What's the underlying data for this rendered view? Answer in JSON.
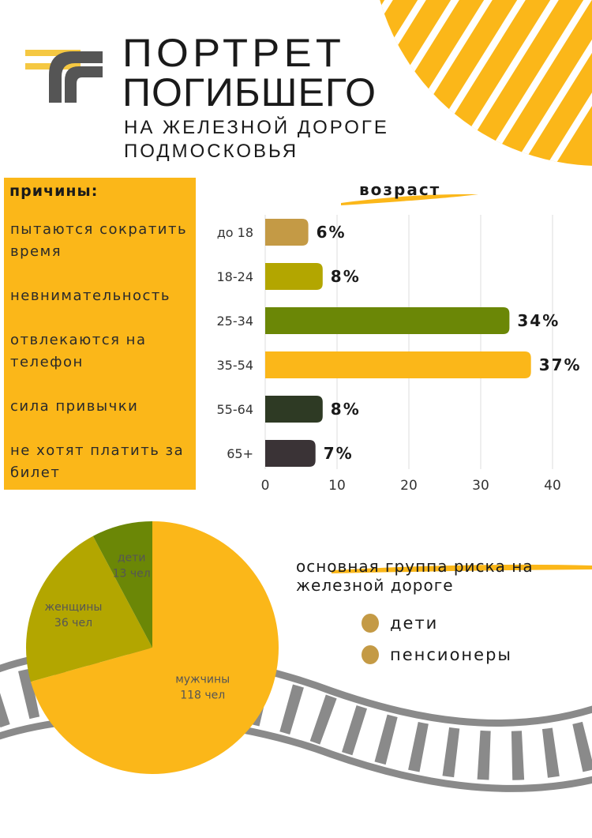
{
  "header": {
    "title_line1": "ПОРТРЕТ",
    "title_line2": "ПОГИБШЕГО",
    "subtitle_line1": "НА ЖЕЛЕЗНОЙ ДОРОГЕ",
    "subtitle_line2": "ПОДМОСКОВЬЯ"
  },
  "reasons": {
    "heading": "причины:",
    "items": [
      "пытаются сократить время",
      "невнимательность",
      "отвлекаются на телефон",
      "сила привычки",
      "не хотят платить за билет"
    ]
  },
  "risk": {
    "title": "основная группа риска на железной дороге",
    "legend": [
      "дети",
      "пенсионеры"
    ],
    "legend_color": "#c49a45"
  },
  "chart_data": [
    {
      "type": "bar",
      "orientation": "horizontal",
      "title": "возраст",
      "categories": [
        "до 18",
        "18-24",
        "25-34",
        "35-54",
        "55-64",
        "65+"
      ],
      "values": [
        6,
        8,
        34,
        37,
        8,
        7
      ],
      "data_labels": [
        "6%",
        "8%",
        "34%",
        "37%",
        "8%",
        "7%"
      ],
      "colors": [
        "#c49a45",
        "#b3a600",
        "#6b8706",
        "#fbb719",
        "#2e3a24",
        "#3a3336"
      ],
      "xlim": [
        0,
        40
      ],
      "xticks": [
        0,
        10,
        20,
        30,
        40
      ],
      "grid": true
    },
    {
      "type": "pie",
      "slices": [
        {
          "name": "мужчины",
          "value": 118,
          "label": "118 чел",
          "color": "#fbb719"
        },
        {
          "name": "женщины",
          "value": 36,
          "label": "36 чел",
          "color": "#b3a600"
        },
        {
          "name": "дети",
          "value": 13,
          "label": "13 чел",
          "color": "#6b8706"
        }
      ]
    }
  ]
}
